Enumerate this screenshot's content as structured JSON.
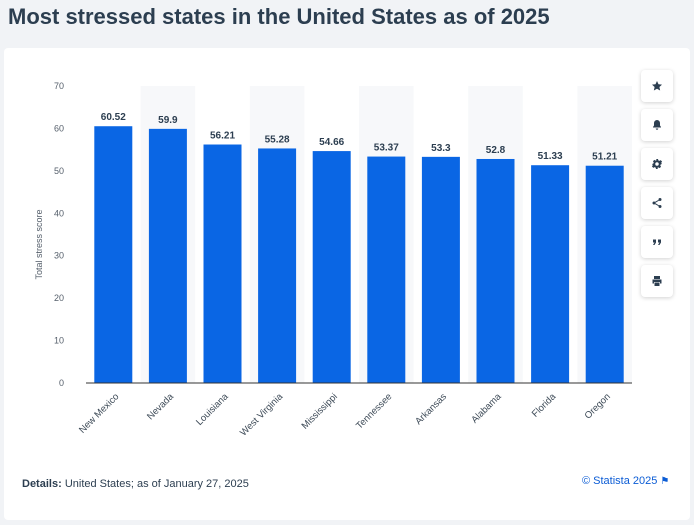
{
  "page": {
    "title": "Most stressed states in the United States as of 2025",
    "details_label": "Details:",
    "details_text": "United States; as of January 27, 2025",
    "copyright": "© Statista 2025",
    "accent_color": "#0a66e4"
  },
  "toolbar": {
    "buttons": [
      {
        "name": "favorite-button",
        "icon": "star-icon"
      },
      {
        "name": "notification-button",
        "icon": "bell-icon"
      },
      {
        "name": "settings-button",
        "icon": "gear-icon"
      },
      {
        "name": "share-button",
        "icon": "share-icon"
      },
      {
        "name": "cite-button",
        "icon": "quote-icon"
      },
      {
        "name": "print-button",
        "icon": "print-icon"
      }
    ]
  },
  "chart_data": {
    "type": "bar",
    "title": "Most stressed states in the United States as of 2025",
    "xlabel": "",
    "ylabel": "Total stress score",
    "ylim": [
      0,
      70
    ],
    "yticks": [
      0,
      10,
      20,
      30,
      40,
      50,
      60,
      70
    ],
    "grid": true,
    "categories": [
      "New Mexico",
      "Nevada",
      "Louisiana",
      "West Virginia",
      "Mississippi",
      "Tennessee",
      "Arkansas",
      "Alabama",
      "Florida",
      "Oregon"
    ],
    "values": [
      60.52,
      59.9,
      56.21,
      55.28,
      54.66,
      53.37,
      53.3,
      52.8,
      51.33,
      51.21
    ],
    "value_labels": [
      "60.52",
      "59.9",
      "56.21",
      "55.28",
      "54.66",
      "53.37",
      "53.3",
      "52.8",
      "51.33",
      "51.21"
    ],
    "bar_color": "#0a66e4"
  }
}
